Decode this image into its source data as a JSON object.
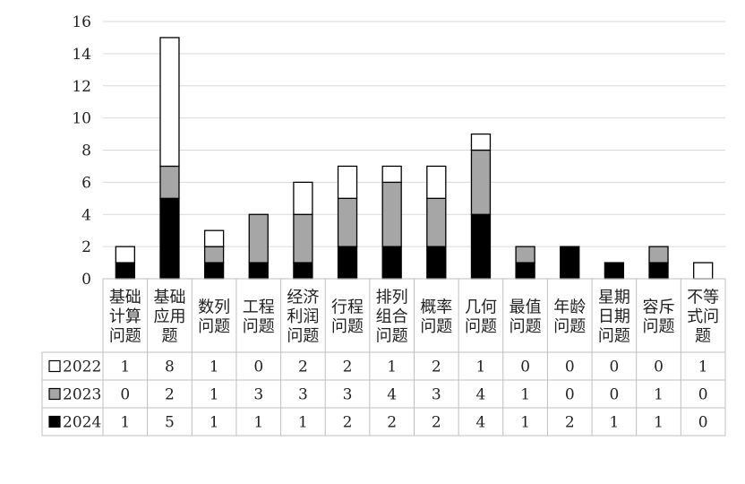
{
  "chart_data": {
    "type": "bar",
    "stacked": true,
    "categories": [
      [
        "基础",
        "计算",
        "问题"
      ],
      [
        "基础",
        "应用",
        "题"
      ],
      [
        "数列",
        "问题"
      ],
      [
        "工程",
        "问题"
      ],
      [
        "经济",
        "利润",
        "问题"
      ],
      [
        "行程",
        "问题"
      ],
      [
        "排列",
        "组合",
        "问题"
      ],
      [
        "概率",
        "问题"
      ],
      [
        "几何",
        "问题"
      ],
      [
        "最值",
        "问题"
      ],
      [
        "年龄",
        "问题"
      ],
      [
        "星期",
        "日期",
        "问题"
      ],
      [
        "容斥",
        "问题"
      ],
      [
        "不等",
        "式问",
        "题"
      ]
    ],
    "series": [
      {
        "name": "2024",
        "color": "#000000",
        "values": [
          1,
          5,
          1,
          1,
          1,
          2,
          2,
          2,
          4,
          1,
          2,
          1,
          1,
          0
        ]
      },
      {
        "name": "2023",
        "color": "#a6a6a6",
        "values": [
          0,
          2,
          1,
          3,
          3,
          3,
          4,
          3,
          4,
          1,
          0,
          0,
          1,
          0
        ]
      },
      {
        "name": "2022",
        "color": "#ffffff",
        "values": [
          1,
          8,
          1,
          0,
          2,
          2,
          1,
          2,
          1,
          0,
          0,
          0,
          0,
          1
        ]
      }
    ],
    "table_order": [
      "2022",
      "2023",
      "2024"
    ],
    "ylim": [
      0,
      16
    ],
    "yticks": [
      0,
      2,
      4,
      6,
      8,
      10,
      12,
      14,
      16
    ],
    "grid": true,
    "legend": "data-table"
  }
}
